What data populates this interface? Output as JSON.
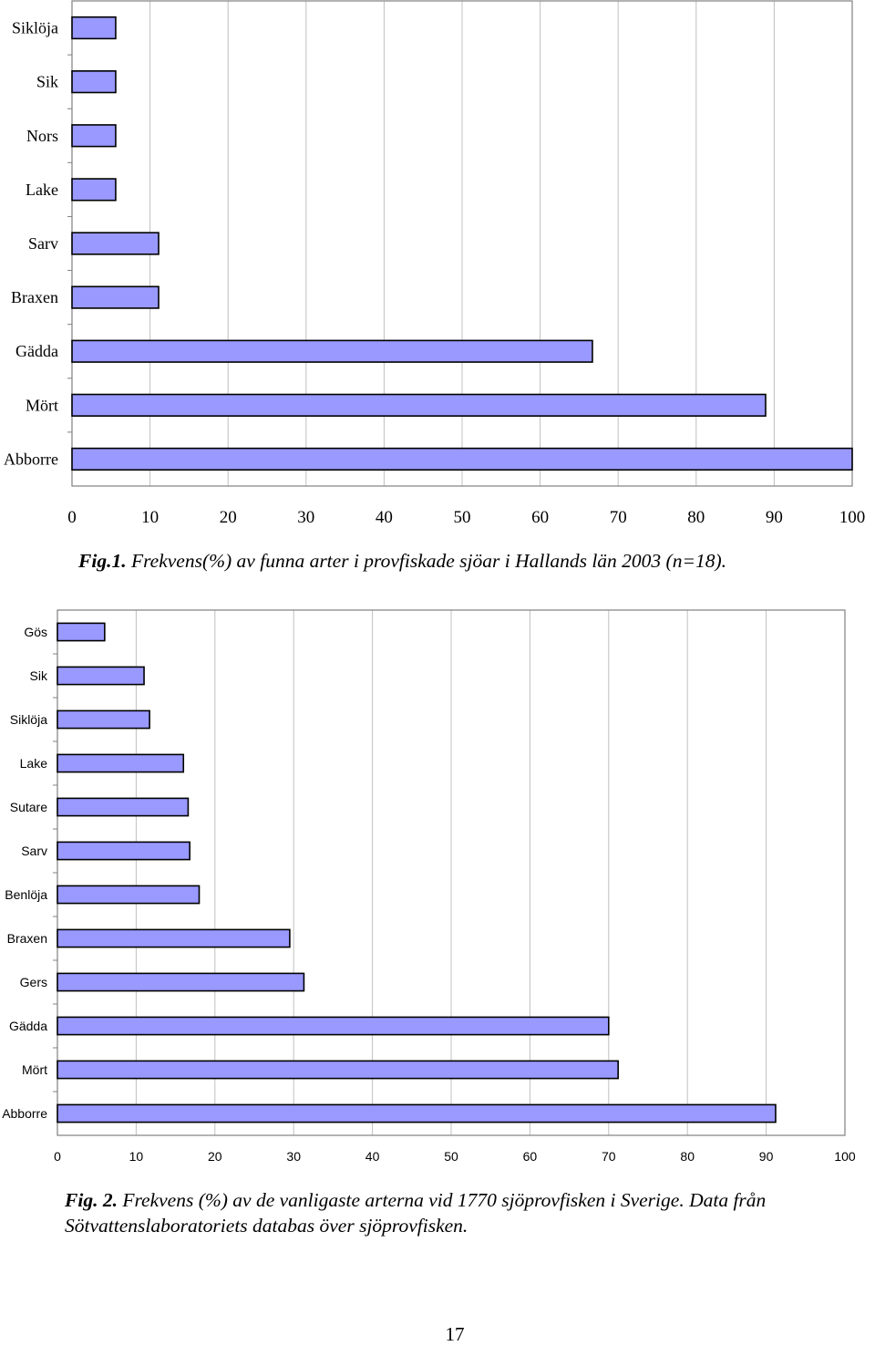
{
  "chart_data": [
    {
      "type": "bar",
      "orientation": "horizontal",
      "categories": [
        "Siklöja",
        "Sik",
        "Nors",
        "Lake",
        "Sarv",
        "Braxen",
        "Gädda",
        "Mört",
        "Abborre"
      ],
      "values": [
        5.6,
        5.6,
        5.6,
        5.6,
        11.1,
        11.1,
        66.7,
        88.9,
        100
      ],
      "xlim": [
        0,
        100
      ],
      "xticks": [
        "0",
        "10",
        "20",
        "30",
        "40",
        "50",
        "60",
        "70",
        "80",
        "90",
        "100"
      ],
      "grid": true,
      "bar_color": "#9999FF"
    },
    {
      "type": "bar",
      "orientation": "horizontal",
      "categories": [
        "Gös",
        "Sik",
        "Siklöja",
        "Lake",
        "Sutare",
        "Sarv",
        "Benlöja",
        "Braxen",
        "Gers",
        "Gädda",
        "Mört",
        "Abborre"
      ],
      "values": [
        6,
        11,
        11.7,
        16,
        16.6,
        16.8,
        18,
        29.5,
        31.3,
        70,
        71.2,
        91.2
      ],
      "xlim": [
        0,
        100
      ],
      "xticks": [
        "0",
        "10",
        "20",
        "30",
        "40",
        "50",
        "60",
        "70",
        "80",
        "90",
        "100"
      ],
      "grid": true,
      "bar_color": "#9999FF"
    }
  ],
  "captions": {
    "fig1_label": "Fig.1.",
    "fig1_text": " Frekvens(%) av funna arter i provfiskade sjöar i Hallands län 2003 (n=18).",
    "fig2_label": "Fig. 2.",
    "fig2_text": " Frekvens (%) av de vanligaste arterna vid 1770 sjöprovfisken i Sverige. Data från",
    "fig2_text2": "Sötvattenslaboratoriets databas över sjöprovfisken."
  },
  "page_number": "17"
}
